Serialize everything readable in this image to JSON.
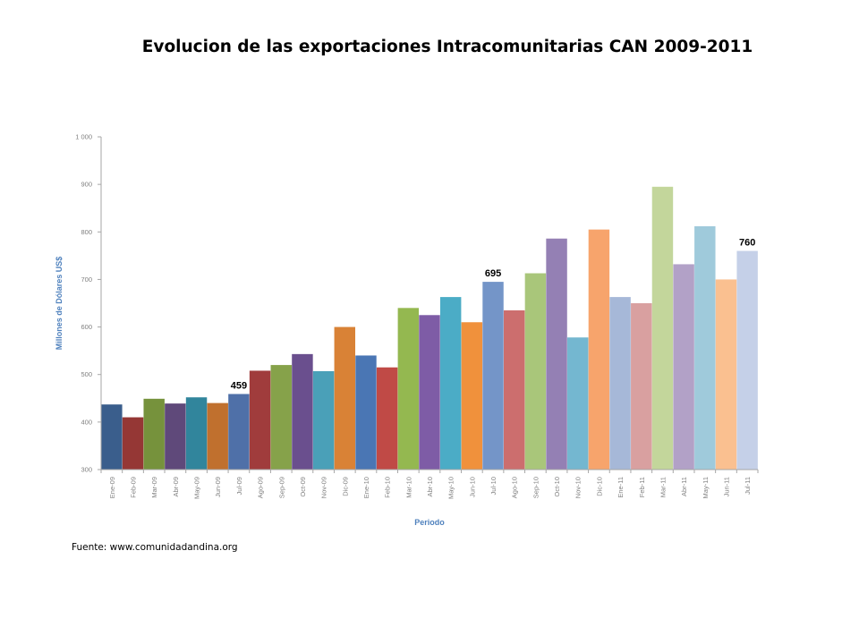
{
  "title": "Evolucion de las exportaciones Intracomunitarias CAN 2009-2011",
  "source": "Fuente: www.comunidadandina.org",
  "chart_data": {
    "type": "bar",
    "title": "",
    "xlabel": "Periodo",
    "ylabel": "Millones de Dólares US$",
    "ylim": [
      300,
      1000
    ],
    "yticks": [
      300,
      400,
      500,
      600,
      700,
      800,
      900,
      1000
    ],
    "ytick_labels": [
      "300",
      "400",
      "500",
      "600",
      "700",
      "800",
      "900",
      "1 000"
    ],
    "grid": false,
    "legend": "none",
    "categories": [
      "Ene-09",
      "Feb-09",
      "Mar-09",
      "Abr-09",
      "May-09",
      "Jun-09",
      "Jul-09",
      "Ago-09",
      "Sep-09",
      "Oct-09",
      "Nov-09",
      "Dic-09",
      "Ene-10",
      "Feb-10",
      "Mar-10",
      "Abr-10",
      "May-10",
      "Jun-10",
      "Jul-10",
      "Ago-10",
      "Sep-10",
      "Oct-10",
      "Nov-10",
      "Dic-10",
      "Ene-11",
      "Feb-11",
      "Mar-11",
      "Abr-11",
      "May-11",
      "Jun-11",
      "Jul-11"
    ],
    "values": [
      437,
      410,
      449,
      439,
      452,
      440,
      459,
      508,
      520,
      543,
      507,
      600,
      540,
      515,
      640,
      625,
      663,
      610,
      695,
      635,
      713,
      786,
      578,
      805,
      663,
      650,
      895,
      732,
      812,
      700,
      760
    ],
    "bar_colors": [
      "#3a5e8c",
      "#953735",
      "#76923c",
      "#5f497a",
      "#31859c",
      "#c0702e",
      "#4f70a8",
      "#a03c3c",
      "#86a24a",
      "#6a4f8e",
      "#4aa0b8",
      "#d98236",
      "#4a76b4",
      "#c04a46",
      "#94b850",
      "#7e5ca6",
      "#4bacc6",
      "#f0913c",
      "#7495c8",
      "#cc6e6e",
      "#a9c67a",
      "#9480b4",
      "#74b7d0",
      "#f7a46c",
      "#a6b8d8",
      "#d9a0a0",
      "#c3d69b",
      "#b2a1c7",
      "#9fcadb",
      "#fac090",
      "#c5d0e8"
    ],
    "annotations": [
      {
        "category": "Jul-09",
        "label": "459"
      },
      {
        "category": "Jul-10",
        "label": "695"
      },
      {
        "category": "Jul-11",
        "label": "760"
      }
    ],
    "axis_color": "#a6a6a6",
    "axis_title_color": "#4f81bd"
  }
}
